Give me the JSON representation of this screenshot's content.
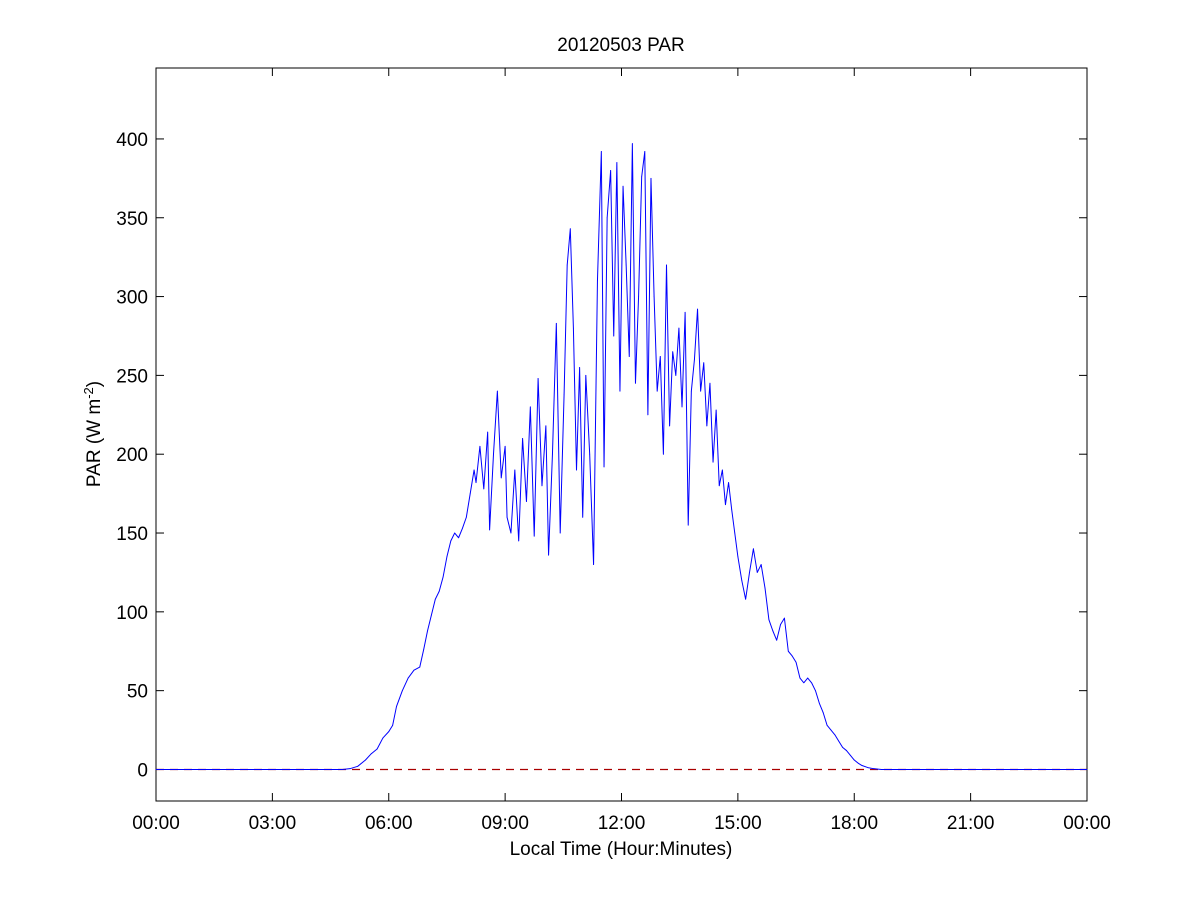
{
  "chart_data": {
    "type": "line",
    "title": "20120503 PAR",
    "xlabel": "Local Time (Hour:Minutes)",
    "ylabel": {
      "prefix": "PAR (W m",
      "superscript": "-2",
      "suffix": ")"
    },
    "xlim": [
      0,
      24
    ],
    "ylim": [
      -20,
      445
    ],
    "x_ticks": [
      {
        "value": 0,
        "label": "00:00"
      },
      {
        "value": 3,
        "label": "03:00"
      },
      {
        "value": 6,
        "label": "06:00"
      },
      {
        "value": 9,
        "label": "09:00"
      },
      {
        "value": 12,
        "label": "12:00"
      },
      {
        "value": 15,
        "label": "15:00"
      },
      {
        "value": 18,
        "label": "18:00"
      },
      {
        "value": 21,
        "label": "21:00"
      },
      {
        "value": 24,
        "label": "00:00"
      }
    ],
    "y_ticks": [
      0,
      50,
      100,
      150,
      200,
      250,
      300,
      350,
      400
    ],
    "grid": false,
    "colors": {
      "series": "#0000ff",
      "reference_line": "#aa0000",
      "axes": "#000000"
    },
    "reference_line": {
      "y": 0,
      "style": "dashed"
    },
    "series": [
      {
        "x_unit": "hour of day",
        "points": [
          [
            0,
            0
          ],
          [
            4.8,
            0
          ],
          [
            5.0,
            0.5
          ],
          [
            5.2,
            2
          ],
          [
            5.4,
            6
          ],
          [
            5.55,
            10
          ],
          [
            5.7,
            13
          ],
          [
            5.85,
            20
          ],
          [
            6.0,
            24
          ],
          [
            6.1,
            28
          ],
          [
            6.2,
            40
          ],
          [
            6.35,
            50
          ],
          [
            6.5,
            58
          ],
          [
            6.65,
            63
          ],
          [
            6.8,
            65
          ],
          [
            6.9,
            76
          ],
          [
            7.0,
            88
          ],
          [
            7.1,
            98
          ],
          [
            7.2,
            108
          ],
          [
            7.3,
            113
          ],
          [
            7.4,
            122
          ],
          [
            7.5,
            135
          ],
          [
            7.6,
            145
          ],
          [
            7.7,
            150
          ],
          [
            7.8,
            147
          ],
          [
            7.9,
            153
          ],
          [
            8.0,
            160
          ],
          [
            8.1,
            175
          ],
          [
            8.2,
            190
          ],
          [
            8.25,
            182
          ],
          [
            8.35,
            205
          ],
          [
            8.45,
            178
          ],
          [
            8.55,
            214
          ],
          [
            8.6,
            152
          ],
          [
            8.7,
            200
          ],
          [
            8.8,
            240
          ],
          [
            8.9,
            185
          ],
          [
            9.0,
            205
          ],
          [
            9.05,
            160
          ],
          [
            9.15,
            150
          ],
          [
            9.25,
            190
          ],
          [
            9.35,
            145
          ],
          [
            9.45,
            210
          ],
          [
            9.55,
            170
          ],
          [
            9.65,
            230
          ],
          [
            9.75,
            148
          ],
          [
            9.85,
            248
          ],
          [
            9.95,
            180
          ],
          [
            10.05,
            218
          ],
          [
            10.12,
            136
          ],
          [
            10.22,
            200
          ],
          [
            10.32,
            283
          ],
          [
            10.42,
            150
          ],
          [
            10.52,
            238
          ],
          [
            10.6,
            320
          ],
          [
            10.68,
            343
          ],
          [
            10.76,
            280
          ],
          [
            10.84,
            190
          ],
          [
            10.92,
            255
          ],
          [
            11.0,
            160
          ],
          [
            11.08,
            250
          ],
          [
            11.18,
            200
          ],
          [
            11.28,
            130
          ],
          [
            11.38,
            310
          ],
          [
            11.48,
            392
          ],
          [
            11.55,
            192
          ],
          [
            11.63,
            350
          ],
          [
            11.72,
            380
          ],
          [
            11.8,
            275
          ],
          [
            11.88,
            385
          ],
          [
            11.96,
            240
          ],
          [
            12.04,
            370
          ],
          [
            12.12,
            320
          ],
          [
            12.2,
            262
          ],
          [
            12.28,
            397
          ],
          [
            12.36,
            245
          ],
          [
            12.44,
            300
          ],
          [
            12.52,
            376
          ],
          [
            12.6,
            392
          ],
          [
            12.68,
            225
          ],
          [
            12.76,
            375
          ],
          [
            12.84,
            300
          ],
          [
            12.92,
            240
          ],
          [
            13.0,
            262
          ],
          [
            13.08,
            200
          ],
          [
            13.16,
            320
          ],
          [
            13.24,
            218
          ],
          [
            13.32,
            265
          ],
          [
            13.4,
            250
          ],
          [
            13.48,
            280
          ],
          [
            13.56,
            230
          ],
          [
            13.64,
            290
          ],
          [
            13.72,
            155
          ],
          [
            13.8,
            240
          ],
          [
            13.88,
            260
          ],
          [
            13.96,
            292
          ],
          [
            14.04,
            240
          ],
          [
            14.12,
            258
          ],
          [
            14.2,
            218
          ],
          [
            14.28,
            245
          ],
          [
            14.36,
            195
          ],
          [
            14.44,
            228
          ],
          [
            14.52,
            180
          ],
          [
            14.6,
            190
          ],
          [
            14.68,
            168
          ],
          [
            14.76,
            182
          ],
          [
            14.84,
            165
          ],
          [
            14.92,
            150
          ],
          [
            15.0,
            135
          ],
          [
            15.1,
            120
          ],
          [
            15.2,
            108
          ],
          [
            15.3,
            125
          ],
          [
            15.4,
            140
          ],
          [
            15.5,
            125
          ],
          [
            15.6,
            130
          ],
          [
            15.7,
            115
          ],
          [
            15.8,
            95
          ],
          [
            15.9,
            88
          ],
          [
            16.0,
            82
          ],
          [
            16.1,
            92
          ],
          [
            16.2,
            96
          ],
          [
            16.3,
            75
          ],
          [
            16.4,
            72
          ],
          [
            16.5,
            68
          ],
          [
            16.6,
            58
          ],
          [
            16.7,
            55
          ],
          [
            16.8,
            58
          ],
          [
            16.9,
            55
          ],
          [
            17.0,
            50
          ],
          [
            17.1,
            42
          ],
          [
            17.2,
            36
          ],
          [
            17.3,
            28
          ],
          [
            17.4,
            25
          ],
          [
            17.5,
            22
          ],
          [
            17.6,
            18
          ],
          [
            17.7,
            14
          ],
          [
            17.8,
            12
          ],
          [
            17.9,
            9
          ],
          [
            18.0,
            6
          ],
          [
            18.1,
            4
          ],
          [
            18.2,
            2.5
          ],
          [
            18.35,
            1.2
          ],
          [
            18.5,
            0.5
          ],
          [
            18.7,
            0
          ],
          [
            24,
            0
          ]
        ]
      }
    ]
  }
}
